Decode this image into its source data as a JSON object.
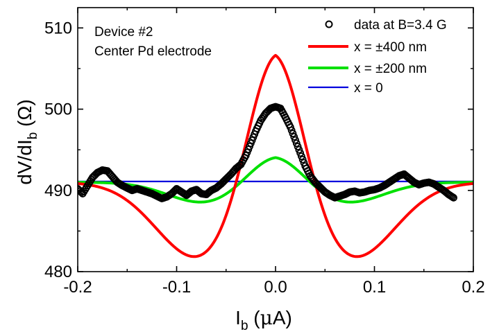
{
  "chart_data": {
    "type": "line",
    "title": "",
    "xlabel": {
      "main": "I",
      "sub": "b",
      "unit_open": " (",
      "unit_mu": "μ",
      "unit_rest": "A)"
    },
    "ylabel": {
      "main": "dV/dI",
      "sub": "b",
      "unit": " (Ω)"
    },
    "xlim": [
      -0.2,
      0.2
    ],
    "ylim": [
      480,
      512.5
    ],
    "xticks": [
      -0.2,
      -0.1,
      0.0,
      0.1,
      0.2
    ],
    "xtick_labels": [
      "-0.2",
      "-0.1",
      "0.0",
      "0.1",
      "0.2"
    ],
    "yticks": [
      480,
      490,
      500,
      510
    ],
    "ytick_labels": [
      "480",
      "490",
      "500",
      "510"
    ],
    "grid": false,
    "legend_position": "top-right",
    "annotations": [
      "Device #2",
      "Center Pd electrode"
    ],
    "series": [
      {
        "name": "data at B=3.4 G",
        "style": "open-circles",
        "color": "#000000",
        "x": [
          -0.2,
          -0.195,
          -0.19,
          -0.185,
          -0.18,
          -0.175,
          -0.17,
          -0.165,
          -0.16,
          -0.155,
          -0.15,
          -0.145,
          -0.14,
          -0.135,
          -0.13,
          -0.125,
          -0.12,
          -0.115,
          -0.11,
          -0.105,
          -0.1,
          -0.095,
          -0.09,
          -0.085,
          -0.08,
          -0.075,
          -0.07,
          -0.065,
          -0.06,
          -0.055,
          -0.05,
          -0.045,
          -0.04,
          -0.035,
          -0.03,
          -0.025,
          -0.02,
          -0.015,
          -0.01,
          -0.005,
          0.0,
          0.005,
          0.01,
          0.015,
          0.02,
          0.025,
          0.03,
          0.035,
          0.04,
          0.045,
          0.05,
          0.055,
          0.06,
          0.065,
          0.07,
          0.075,
          0.08,
          0.085,
          0.09,
          0.095,
          0.1,
          0.105,
          0.11,
          0.115,
          0.12,
          0.125,
          0.13,
          0.135,
          0.14,
          0.145,
          0.15,
          0.155,
          0.16,
          0.165,
          0.17,
          0.175,
          0.18
        ],
        "y": [
          490.2,
          489.6,
          490.6,
          491.6,
          492.2,
          492.5,
          492.4,
          491.7,
          491.0,
          490.6,
          490.3,
          490.0,
          490.2,
          490.0,
          489.8,
          489.6,
          489.3,
          489.0,
          489.2,
          489.6,
          490.2,
          489.8,
          489.4,
          489.9,
          490.1,
          489.6,
          489.5,
          490.0,
          490.3,
          490.8,
          491.4,
          492.0,
          492.7,
          493.2,
          494.3,
          495.8,
          497.3,
          498.6,
          499.5,
          500.1,
          500.3,
          500.1,
          499.0,
          497.8,
          496.2,
          494.6,
          493.0,
          491.8,
          491.0,
          490.4,
          489.8,
          489.4,
          489.1,
          489.3,
          489.5,
          489.8,
          489.9,
          489.7,
          489.8,
          490.0,
          490.1,
          490.3,
          490.6,
          491.0,
          491.4,
          491.8,
          492.0,
          491.5,
          491.0,
          490.7,
          490.9,
          491.0,
          490.8,
          490.4,
          490.0,
          489.5,
          489.1
        ]
      },
      {
        "name": "x = ±400 nm",
        "style": "line",
        "color": "#ff0000",
        "baseline": 491.0,
        "peak": 17.5,
        "peak_width": 0.0283,
        "dip": 9.47,
        "dip_center": 0.0772,
        "dip_width": 0.0429
      },
      {
        "name": "x = ±200 nm",
        "style": "line",
        "color": "#00e000",
        "baseline": 491.0,
        "peak": 3.42,
        "peak_width": 0.0283,
        "dip": 2.55,
        "dip_center": 0.0716,
        "dip_width": 0.0368
      },
      {
        "name": "x = 0",
        "style": "line",
        "color": "#0000dd",
        "value": 491.1
      }
    ]
  }
}
